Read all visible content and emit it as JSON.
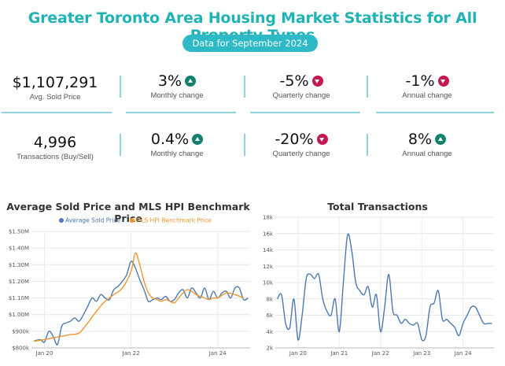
{
  "header": {
    "title": "Greater Toronto Area Housing Market Statistics for All Property Types",
    "subtitle": "Data for September 2024"
  },
  "stats_row1": [
    {
      "value": "$1,107,291",
      "label": "Avg. Sold Price",
      "direction": ""
    },
    {
      "value": "3%",
      "label": "Monthly change",
      "direction": "up"
    },
    {
      "value": "-5%",
      "label": "Quarterly change",
      "direction": "down"
    },
    {
      "value": "-1%",
      "label": "Annual change",
      "direction": "down"
    }
  ],
  "stats_row2": [
    {
      "value": "4,996",
      "label": "Transactions (Buy/Sell)",
      "direction": ""
    },
    {
      "value": "0.4%",
      "label": "Monthly  change",
      "direction": "up"
    },
    {
      "value": "-20%",
      "label": "Quarterly  change",
      "direction": "down"
    },
    {
      "value": "8%",
      "label": "Annual change",
      "direction": "up"
    }
  ],
  "colors": {
    "teal": "#1fb3b8",
    "up": "#14806f",
    "down": "#c4184e",
    "series_avg": "#4a7ab0",
    "series_hpi": "#f0962e"
  },
  "chart_data": [
    {
      "type": "line",
      "title": "Average Sold Price and MLS HPI Benchmark Price",
      "legend_placement": "top",
      "ylim": [
        800000,
        1500000
      ],
      "yticks": [
        800000,
        900000,
        1000000,
        1100000,
        1200000,
        1300000,
        1400000,
        1500000
      ],
      "ytick_labels": [
        "$800k",
        "$900k",
        "$1.00M",
        "$1.10M",
        "$1.20M",
        "$1.30M",
        "$1.40M",
        "$1.50M"
      ],
      "xticks": [
        2020,
        2022,
        2024
      ],
      "xtick_labels": [
        "Jan 20",
        "Jan 22",
        "Jan 24"
      ],
      "xlim": [
        2019.7,
        2024.75
      ],
      "grid": true,
      "series": [
        {
          "name": "Average Sold Price",
          "x": [
            2019.75,
            2019.9,
            2020.0,
            2020.1,
            2020.2,
            2020.3,
            2020.4,
            2020.5,
            2020.6,
            2020.7,
            2020.8,
            2020.9,
            2021.0,
            2021.1,
            2021.2,
            2021.3,
            2021.4,
            2021.5,
            2021.6,
            2021.7,
            2021.8,
            2021.9,
            2022.0,
            2022.1,
            2022.2,
            2022.3,
            2022.4,
            2022.5,
            2022.6,
            2022.7,
            2022.8,
            2022.9,
            2023.0,
            2023.1,
            2023.2,
            2023.3,
            2023.4,
            2023.5,
            2023.6,
            2023.7,
            2023.8,
            2023.9,
            2024.0,
            2024.1,
            2024.2,
            2024.3,
            2024.4,
            2024.5,
            2024.6,
            2024.7
          ],
          "values": [
            840000,
            850000,
            835000,
            900000,
            870000,
            820000,
            930000,
            950000,
            960000,
            980000,
            960000,
            1000000,
            1050000,
            1100000,
            1080000,
            1120000,
            1100000,
            1090000,
            1150000,
            1170000,
            1200000,
            1240000,
            1320000,
            1280000,
            1210000,
            1150000,
            1080000,
            1090000,
            1100000,
            1090000,
            1110000,
            1080000,
            1090000,
            1130000,
            1150000,
            1100000,
            1160000,
            1130000,
            1100000,
            1160000,
            1090000,
            1140000,
            1100000,
            1130000,
            1140000,
            1100000,
            1160000,
            1160000,
            1090000,
            1100000
          ]
        },
        {
          "name": "MLS HPI Benchmark Price",
          "x": [
            2019.75,
            2020.0,
            2020.2,
            2020.4,
            2020.6,
            2020.8,
            2021.0,
            2021.2,
            2021.4,
            2021.6,
            2021.8,
            2022.0,
            2022.1,
            2022.2,
            2022.3,
            2022.4,
            2022.5,
            2022.6,
            2022.7,
            2022.8,
            2022.9,
            2023.0,
            2023.1,
            2023.2,
            2023.3,
            2023.4,
            2023.5,
            2023.6,
            2023.7,
            2023.8,
            2023.9,
            2024.0,
            2024.2,
            2024.4,
            2024.6
          ],
          "values": [
            840000,
            850000,
            860000,
            870000,
            880000,
            890000,
            950000,
            1020000,
            1080000,
            1120000,
            1160000,
            1260000,
            1370000,
            1300000,
            1200000,
            1130000,
            1100000,
            1090000,
            1080000,
            1090000,
            1080000,
            1070000,
            1100000,
            1130000,
            1150000,
            1140000,
            1120000,
            1110000,
            1100000,
            1090000,
            1100000,
            1100000,
            1130000,
            1120000,
            1100000
          ]
        }
      ]
    },
    {
      "type": "line",
      "title": "Total Transactions",
      "ylim": [
        2000,
        18000
      ],
      "yticks": [
        2000,
        4000,
        6000,
        8000,
        10000,
        12000,
        14000,
        16000,
        18000
      ],
      "ytick_labels": [
        "2k",
        "4k",
        "6k",
        "8k",
        "10k",
        "12k",
        "14k",
        "16k",
        "18k"
      ],
      "xticks": [
        2020,
        2021,
        2022,
        2023,
        2024
      ],
      "xtick_labels": [
        "Jan 20",
        "Jan 21",
        "Jan 22",
        "Jan 23",
        "Jan 24"
      ],
      "xlim": [
        2019.45,
        2024.75
      ],
      "grid": true,
      "series": [
        {
          "name": "Total Transactions",
          "x": [
            2019.5,
            2019.6,
            2019.7,
            2019.8,
            2019.9,
            2020.0,
            2020.1,
            2020.2,
            2020.3,
            2020.4,
            2020.5,
            2020.6,
            2020.7,
            2020.8,
            2020.9,
            2021.0,
            2021.1,
            2021.2,
            2021.3,
            2021.4,
            2021.5,
            2021.6,
            2021.7,
            2021.8,
            2021.9,
            2022.0,
            2022.1,
            2022.2,
            2022.3,
            2022.4,
            2022.5,
            2022.6,
            2022.7,
            2022.8,
            2022.9,
            2023.0,
            2023.1,
            2023.2,
            2023.3,
            2023.4,
            2023.5,
            2023.6,
            2023.7,
            2023.8,
            2023.9,
            2024.0,
            2024.1,
            2024.2,
            2024.3,
            2024.4,
            2024.5,
            2024.6,
            2024.7
          ],
          "values": [
            8000,
            8500,
            5000,
            4500,
            8000,
            3000,
            6000,
            10500,
            11000,
            10500,
            11000,
            8000,
            6500,
            6000,
            8000,
            4000,
            10000,
            15800,
            14000,
            10000,
            9000,
            8500,
            9500,
            7000,
            8500,
            4000,
            7000,
            11000,
            6500,
            6000,
            5000,
            5500,
            5000,
            4800,
            5000,
            3000,
            3500,
            7000,
            7500,
            9000,
            5500,
            5500,
            5000,
            4500,
            3500,
            5000,
            6000,
            7000,
            7000,
            6000,
            5000,
            5000,
            5000
          ]
        }
      ]
    }
  ]
}
